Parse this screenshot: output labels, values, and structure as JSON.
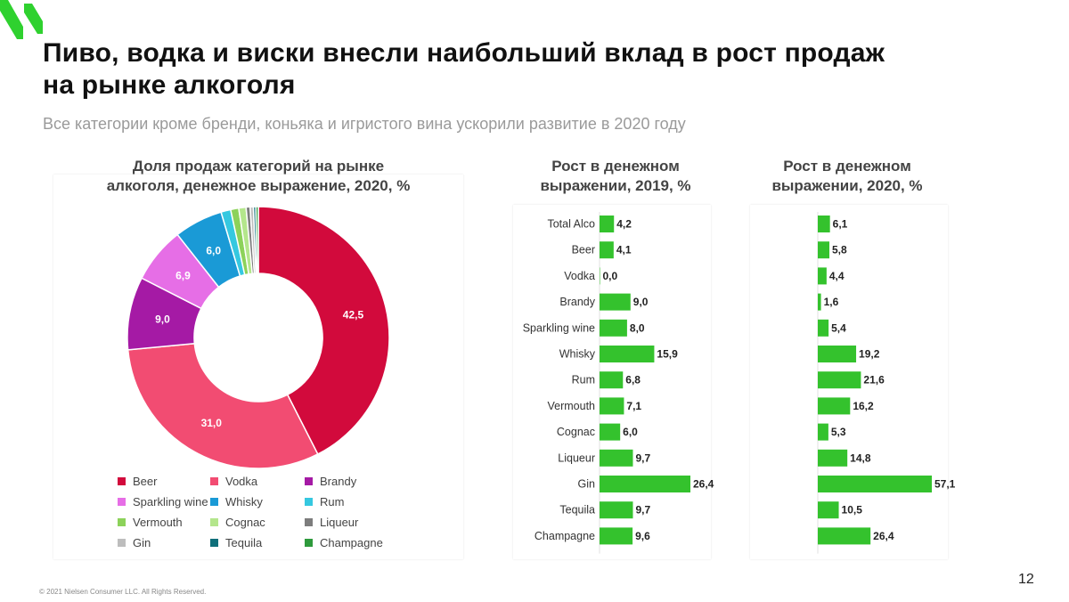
{
  "header": {
    "title": "Пиво, водка и виски внесли наибольший вклад в рост продаж\nна рынке алкоголя",
    "subtitle": "Все категории кроме бренди, коньяка и игристого вина ускорили развитие в 2020 году"
  },
  "colors": {
    "logo": "#2fd12f",
    "bar": "#34c22d"
  },
  "chart_data": [
    {
      "type": "pie",
      "title": "Доля продаж категорий на рынке\nалкоголя, денежное выражение, 2020, %",
      "categories": [
        "Beer",
        "Vodka",
        "Brandy",
        "Sparkling wine",
        "Whisky",
        "Rum",
        "Vermouth",
        "Cognac",
        "Liqueur",
        "Gin",
        "Tequila",
        "Champagne"
      ],
      "values": [
        42.5,
        31.0,
        9.0,
        6.9,
        6.0,
        1.2,
        1.0,
        0.9,
        0.5,
        0.4,
        0.3,
        0.3
      ],
      "data_labels": [
        "42,5",
        "31,0",
        "9,0",
        "6,9",
        "6,0",
        "",
        "",
        "",
        "",
        "",
        "",
        ""
      ],
      "colors": [
        "#d20a3c",
        "#f24c72",
        "#a51aa5",
        "#e66ee6",
        "#1a9ad6",
        "#35c8e0",
        "#8cd25a",
        "#b4e68c",
        "#7d7d7d",
        "#bdbdbd",
        "#0f6f7a",
        "#2e9a3c"
      ],
      "legend": "bottom"
    },
    {
      "type": "bar",
      "orientation": "horizontal",
      "title": "Рост в денежном\nвыражении, 2019, %",
      "categories": [
        "Total Alco",
        "Beer",
        "Vodka",
        "Brandy",
        "Sparkling wine",
        "Whisky",
        "Rum",
        "Vermouth",
        "Cognac",
        "Liqueur",
        "Gin",
        "Tequila",
        "Champagne"
      ],
      "values": [
        4.2,
        4.1,
        0.0,
        9.0,
        8.0,
        15.9,
        6.8,
        7.1,
        6.0,
        9.7,
        26.4,
        9.7,
        9.6
      ],
      "data_labels": [
        "4,2",
        "4,1",
        "0,0",
        "9,0",
        "8,0",
        "15,9",
        "6,8",
        "7,1",
        "6,0",
        "9,7",
        "26,4",
        "9,7",
        "9,6"
      ],
      "xlim": [
        0,
        28
      ]
    },
    {
      "type": "bar",
      "orientation": "horizontal",
      "title": "Рост в денежном\nвыражении, 2020, %",
      "categories": [
        "Total Alco",
        "Beer",
        "Vodka",
        "Brandy",
        "Sparkling wine",
        "Whisky",
        "Rum",
        "Vermouth",
        "Cognac",
        "Liqueur",
        "Gin",
        "Tequila",
        "Champagne"
      ],
      "values": [
        6.1,
        5.8,
        4.4,
        1.6,
        5.4,
        19.2,
        21.6,
        16.2,
        5.3,
        14.8,
        57.1,
        10.5,
        26.4
      ],
      "data_labels": [
        "6,1",
        "5,8",
        "4,4",
        "1,6",
        "5,4",
        "19,2",
        "21,6",
        "16,2",
        "5,3",
        "14,8",
        "57,1",
        "10,5",
        "26,4"
      ],
      "xlim": [
        0,
        75
      ]
    }
  ],
  "footer": {
    "copyright": "© 2021 Nielsen Consumer LLC. All Rights Reserved.",
    "page_number": "12"
  }
}
